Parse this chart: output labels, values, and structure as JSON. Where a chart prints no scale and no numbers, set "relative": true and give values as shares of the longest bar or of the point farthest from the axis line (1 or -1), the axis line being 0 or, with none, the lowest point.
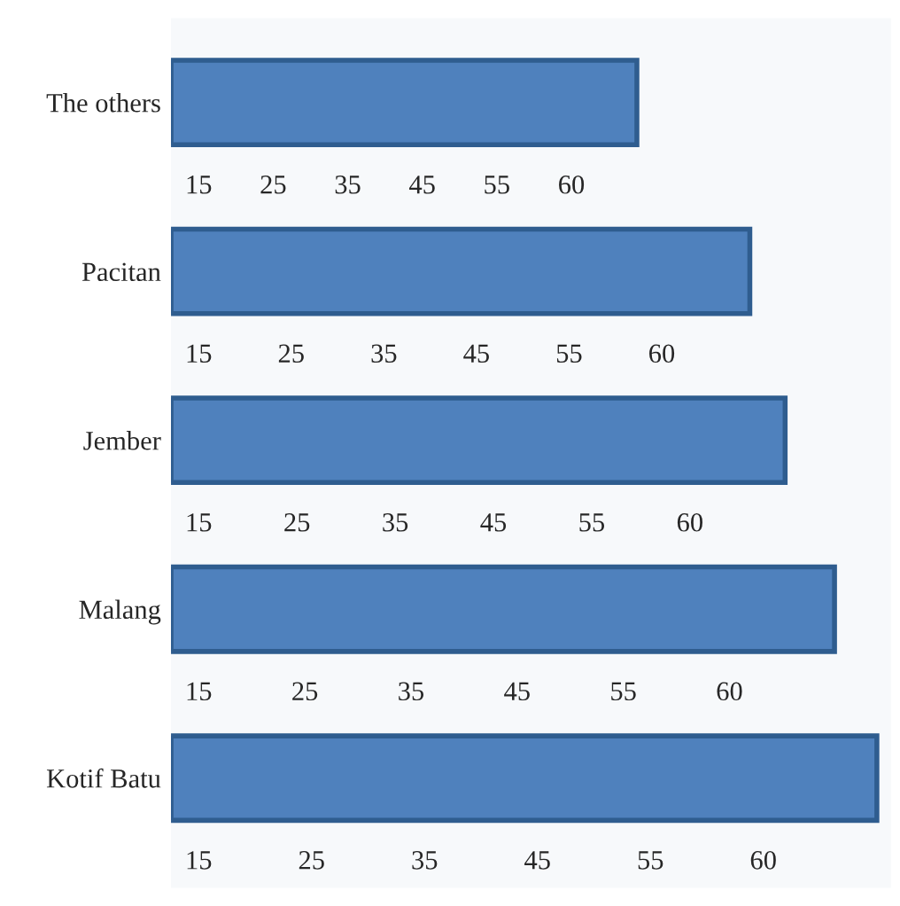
{
  "chart_data": {
    "type": "bar",
    "orientation": "horizontal",
    "relative": true,
    "categories": [
      "The others",
      "Pacitan",
      "Jember",
      "Malang",
      "Kotif Batu"
    ],
    "values": [
      0.66,
      0.82,
      0.87,
      0.94,
      1
    ],
    "color": "#4f81bd",
    "annotations": [
      "15 25 35 45 55 60",
      "15 25 35 45 55 60",
      "15 25 35 45 55 60",
      "15 25 35 45 55 60",
      "15 25 35 45 55 60"
    ],
    "grid": false,
    "legend": false
  }
}
